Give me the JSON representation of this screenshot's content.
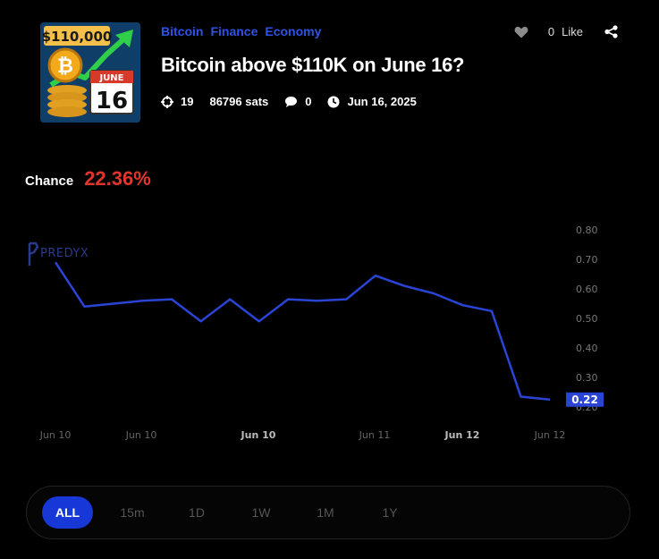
{
  "market": {
    "tags": [
      "Bitcoin",
      "Finance",
      "Economy"
    ],
    "title": "Bitcoin above $110K on June 16?",
    "thumbnail": {
      "price_text": "$110,000",
      "month": "JUNE",
      "day": "16"
    },
    "meta": {
      "participants": "19",
      "volume": "86796 sats",
      "comments": "0",
      "date": "Jun 16, 2025"
    },
    "likes": {
      "count": "0",
      "label": "Like"
    }
  },
  "chance": {
    "label": "Chance",
    "value": "22.36%"
  },
  "watermark": "PREDYX",
  "colors": {
    "accent": "#2f52e6",
    "line": "#2a44d6",
    "chance": "#e0352b"
  },
  "chart_data": {
    "type": "line",
    "y_ticks": [
      "0.80",
      "0.70",
      "0.60",
      "0.50",
      "0.40",
      "0.30",
      "0.20"
    ],
    "ylim": [
      0.2,
      0.8
    ],
    "x_ticks": [
      {
        "label": "Jun 10",
        "bold": false
      },
      {
        "label": "Jun 10",
        "bold": false
      },
      {
        "label": "Jun 10",
        "bold": true
      },
      {
        "label": "Jun 11",
        "bold": false
      },
      {
        "label": "Jun 12",
        "bold": true
      },
      {
        "label": "Jun 12",
        "bold": false
      }
    ],
    "series": [
      {
        "values": [
          0.69,
          0.54,
          0.55,
          0.56,
          0.565,
          0.49,
          0.565,
          0.49,
          0.565,
          0.56,
          0.565,
          0.645,
          0.61,
          0.585,
          0.545,
          0.525,
          0.235,
          0.225
        ]
      }
    ],
    "current_value_label": "0.22",
    "grid": false
  },
  "ranges": [
    "ALL",
    "15m",
    "1D",
    "1W",
    "1M",
    "1Y"
  ],
  "active_range": "ALL"
}
